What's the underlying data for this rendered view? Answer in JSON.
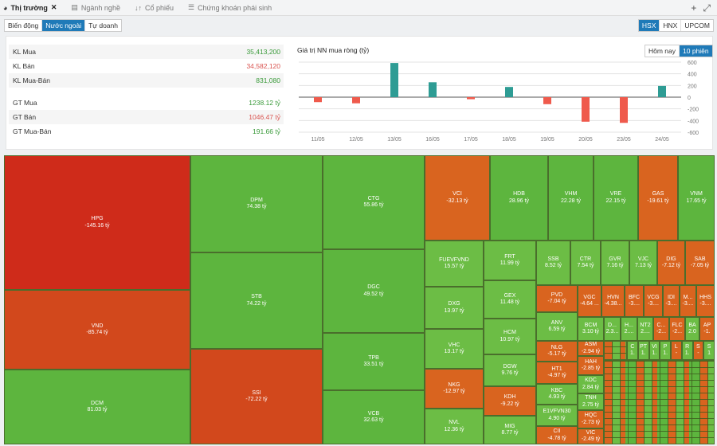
{
  "tabs": [
    {
      "label": "Thị trường",
      "icon": "pie-chart-icon",
      "active": true
    },
    {
      "label": "Ngành nghề",
      "icon": "table-icon"
    },
    {
      "label": "Cổ phiếu",
      "icon": "sort-icon"
    },
    {
      "label": "Chứng khoán phái sinh",
      "icon": "list-icon"
    }
  ],
  "subtabs": [
    "Biến động",
    "Nước ngoài",
    "Tự doanh"
  ],
  "exchanges": [
    "HSX",
    "HNX",
    "UPCOM"
  ],
  "stats": [
    {
      "label": "KL Mua",
      "value": "35,413,200",
      "color": "g"
    },
    {
      "label": "KL Bán",
      "value": "34,582,120",
      "color": "r"
    },
    {
      "label": "KL Mua-Bán",
      "value": "831,080",
      "color": "g"
    },
    {
      "label": "GT Mua",
      "value": "1238.12 tỷ",
      "color": "g"
    },
    {
      "label": "GT Bán",
      "value": "1046.47 tỷ",
      "color": "r"
    },
    {
      "label": "GT Mua-Bán",
      "value": "191.66 tỷ",
      "color": "g"
    }
  ],
  "chart_toggle": [
    "Hôm nay",
    "10 phiên"
  ],
  "chart_data": {
    "type": "bar",
    "title": "Giá trị NN mua ròng (tỷ)",
    "categories": [
      "11/05",
      "12/05",
      "13/05",
      "16/05",
      "17/05",
      "18/05",
      "19/05",
      "20/05",
      "23/05",
      "24/05"
    ],
    "values": [
      -85,
      -105,
      585,
      255,
      -35,
      175,
      -120,
      -420,
      -440,
      192
    ],
    "ylim": [
      -600,
      600
    ],
    "yticks": [
      600,
      400,
      200,
      0,
      -200,
      -400,
      -600
    ],
    "grid": true,
    "colors": {
      "positive": "#2e9c94",
      "negative": "#ef5a4c"
    }
  },
  "colors": {
    "red": "#cf2b1a",
    "darkorange": "#d2481c",
    "orange": "#d9641f",
    "green": "#5db53e",
    "lightgreen": "#6cbd45"
  },
  "treemap": [
    [
      "HPG",
      "-145.16 tỷ",
      "red"
    ],
    [
      "VND",
      "-85.74 tỷ",
      "darkorange"
    ],
    [
      "DCM",
      "81.03 tỷ",
      "green"
    ],
    [
      "DPM",
      "74.38 tỷ",
      "green"
    ],
    [
      "STB",
      "74.22 tỷ",
      "green"
    ],
    [
      "SSI",
      "-72.22 tỷ",
      "darkorange"
    ],
    [
      "CTG",
      "55.86 tỷ",
      "green"
    ],
    [
      "DGC",
      "49.52 tỷ",
      "green"
    ],
    [
      "TPB",
      "33.51 tỷ",
      "green"
    ],
    [
      "VCB",
      "32.63 tỷ",
      "green"
    ],
    [
      "VCI",
      "-32.13 tỷ",
      "orange"
    ],
    [
      "HDB",
      "28.96 tỷ",
      "green"
    ],
    [
      "VHM",
      "22.28 tỷ",
      "green"
    ],
    [
      "VRE",
      "22.15 tỷ",
      "green"
    ],
    [
      "GAS",
      "-19.61 tỷ",
      "orange"
    ],
    [
      "VNM",
      "17.65 tỷ",
      "green"
    ],
    [
      "FUEVFVND",
      "15.57 tỷ",
      "lightgreen"
    ],
    [
      "FRT",
      "11.99 tỷ",
      "lightgreen"
    ],
    [
      "SSB",
      "8.52 tỷ",
      "lightgreen"
    ],
    [
      "CTR",
      "7.54 tỷ",
      "lightgreen"
    ],
    [
      "GVR",
      "7.16 tỷ",
      "lightgreen"
    ],
    [
      "VJC",
      "7.13 tỷ",
      "lightgreen"
    ],
    [
      "DIG",
      "-7.12 tỷ",
      "orange"
    ],
    [
      "SAB",
      "-7.05 tỷ",
      "orange"
    ],
    [
      "DXG",
      "13.97 tỷ",
      "lightgreen"
    ],
    [
      "VHC",
      "13.17 tỷ",
      "lightgreen"
    ],
    [
      "NKG",
      "-12.97 tỷ",
      "orange"
    ],
    [
      "NVL",
      "12.36 tỷ",
      "lightgreen"
    ],
    [
      "GEX",
      "11.48 tỷ",
      "lightgreen"
    ],
    [
      "HCM",
      "10.97 tỷ",
      "lightgreen"
    ],
    [
      "DGW",
      "9.76 tỷ",
      "lightgreen"
    ],
    [
      "KDH",
      "-9.22 tỷ",
      "orange"
    ],
    [
      "MIG",
      "8.77 tỷ",
      "lightgreen"
    ],
    [
      "PVD",
      "-7.04 tỷ",
      "orange"
    ],
    [
      "ANV",
      "6.59 tỷ",
      "lightgreen"
    ],
    [
      "NLG",
      "-5.17 tỷ",
      "orange"
    ],
    [
      "HT1",
      "-4.97 tỷ",
      "orange"
    ],
    [
      "KBC",
      "4.93 tỷ",
      "lightgreen"
    ],
    [
      "E1VFVN30",
      "4.90 tỷ",
      "lightgreen"
    ],
    [
      "CII",
      "-4.78 tỷ",
      "orange"
    ],
    [
      "VGC",
      "-4.64 ...",
      "orange"
    ],
    [
      "HVN",
      "-4.38...",
      "orange"
    ],
    [
      "BFC",
      "-3....",
      "orange"
    ],
    [
      "VCG",
      "-3....",
      "orange"
    ],
    [
      "IDI",
      "-3....",
      "orange"
    ],
    [
      "M...",
      "-3....",
      "orange"
    ],
    [
      "HHS",
      "-3....",
      "orange"
    ],
    [
      "BCM",
      "3.10 tỷ",
      "lightgreen"
    ],
    [
      "ASM",
      "-2.94 tỷ",
      "orange"
    ],
    [
      "HAH",
      "-2.85 tỷ",
      "orange"
    ],
    [
      "KDC",
      "2.84 tỷ",
      "lightgreen"
    ],
    [
      "TNH",
      "2.75 tỷ",
      "lightgreen"
    ],
    [
      "HQC",
      "-2.73 tỷ",
      "orange"
    ],
    [
      "VIC",
      "-2.49 tỷ",
      "orange"
    ],
    [
      "D...",
      "2.3...",
      "lightgreen"
    ],
    [
      "H...",
      "2....",
      "lightgreen"
    ],
    [
      "NT2",
      "2....",
      "lightgreen"
    ],
    [
      "C...",
      "-2...",
      "orange"
    ],
    [
      "FLC",
      "-2...",
      "orange"
    ],
    [
      "BA",
      "2.0",
      "lightgreen"
    ],
    [
      "AP",
      "-1.",
      "orange"
    ],
    [
      "C",
      "1.",
      "lightgreen"
    ],
    [
      "PT",
      "1.",
      "lightgreen"
    ],
    [
      "VI",
      "1.",
      "lightgreen"
    ],
    [
      "P",
      "1.",
      "lightgreen"
    ],
    [
      "L",
      "-",
      "orange"
    ],
    [
      "R",
      "1.",
      "lightgreen"
    ],
    [
      "S",
      "-",
      "orange"
    ],
    [
      "S",
      "1",
      "lightgreen"
    ]
  ]
}
